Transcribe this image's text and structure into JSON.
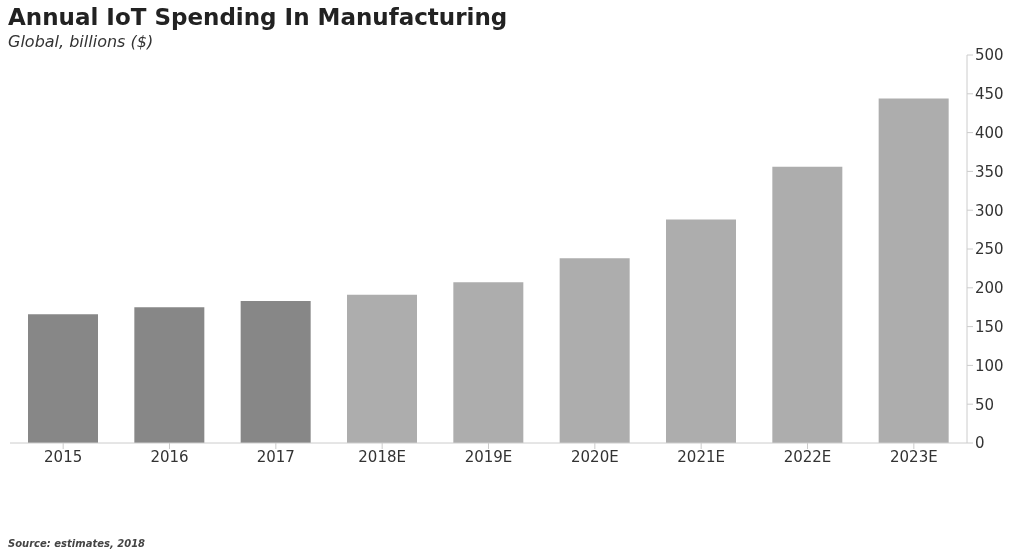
{
  "chart_data": {
    "type": "bar",
    "title": "Annual IoT Spending In Manufacturing",
    "subtitle": "Global, billions ($)",
    "categories": [
      "2015",
      "2016",
      "2017",
      "2018E",
      "2019E",
      "2020E",
      "2021E",
      "2022E",
      "2023E"
    ],
    "values": [
      166,
      175,
      183,
      191,
      207,
      238,
      288,
      356,
      444
    ],
    "colors": [
      "#878787",
      "#878787",
      "#878787",
      "#adadad",
      "#adadad",
      "#adadad",
      "#adadad",
      "#adadad",
      "#adadad"
    ],
    "ylim": [
      0,
      500
    ],
    "yticks": [
      0,
      50,
      100,
      150,
      200,
      250,
      300,
      350,
      400,
      450,
      500
    ],
    "grid": false,
    "annotations": [
      "Source: estimates, 2018"
    ]
  }
}
